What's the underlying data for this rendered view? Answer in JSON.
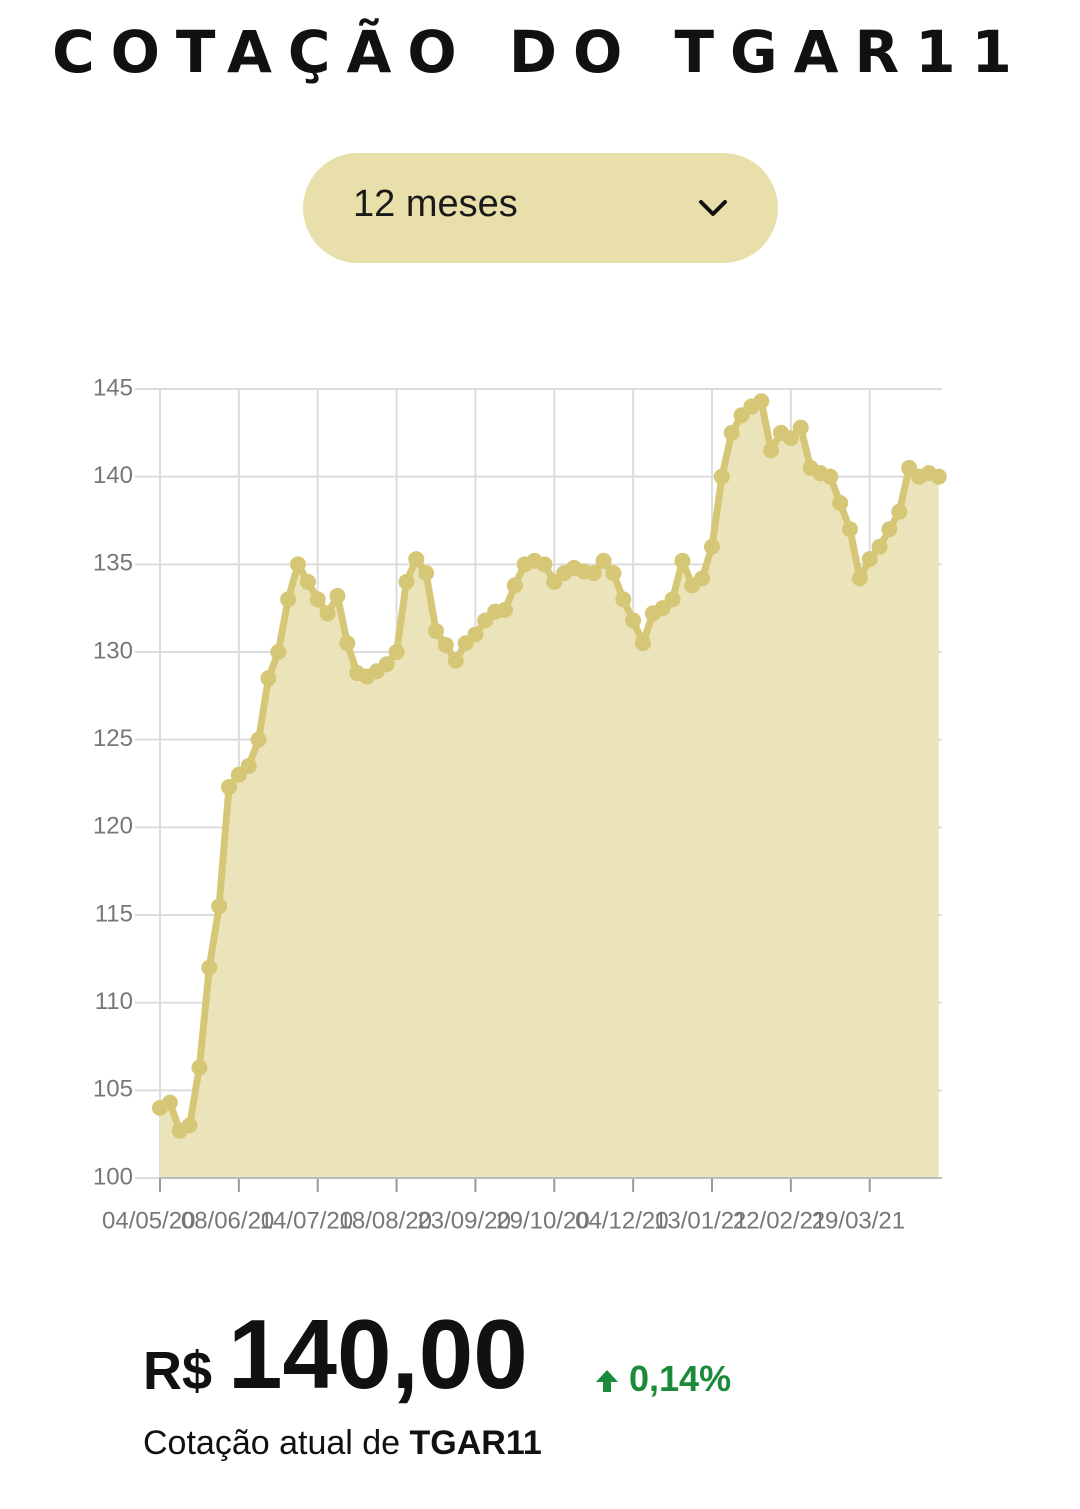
{
  "header": {
    "title": "COTAÇÃO DO TGAR11"
  },
  "period_select": {
    "label": "12 meses"
  },
  "chart_data": {
    "type": "area",
    "x": [
      0,
      3,
      6,
      9,
      12,
      15,
      18,
      21,
      24,
      27,
      30,
      33,
      36,
      39,
      42,
      45,
      48,
      51,
      54,
      57,
      60,
      63,
      66,
      69,
      72,
      75,
      78,
      81,
      84,
      87,
      90,
      93,
      96,
      99,
      102,
      105,
      108,
      111,
      114,
      117,
      120,
      123,
      126,
      129,
      132,
      135,
      138,
      141,
      144,
      147,
      150,
      153,
      156,
      159,
      162,
      165,
      168,
      171,
      174,
      177,
      180,
      183,
      186,
      189,
      192,
      195,
      198,
      201,
      204,
      207,
      210,
      213,
      216,
      219,
      222,
      225,
      228,
      231,
      234,
      237
    ],
    "series": [
      {
        "name": "TGAR11",
        "color": "#d6c777",
        "values": [
          104,
          104.3,
          102.7,
          103,
          106.3,
          112,
          115.5,
          122.3,
          123,
          123.5,
          125,
          128.5,
          130,
          133,
          135,
          134,
          133,
          132.2,
          133.2,
          130.5,
          128.8,
          128.6,
          128.9,
          129.3,
          130,
          134,
          135.3,
          134.5,
          131.2,
          130.4,
          129.5,
          130.5,
          131,
          131.8,
          132.3,
          132.4,
          133.8,
          135,
          135.2,
          135,
          134,
          134.5,
          134.8,
          134.6,
          134.5,
          135.2,
          134.5,
          133,
          131.8,
          130.5,
          132.2,
          132.5,
          133,
          135.2,
          133.8,
          134.2,
          136,
          140,
          142.5,
          143.5,
          144,
          144.3,
          141.5,
          142.5,
          142.2,
          142.8,
          140.5,
          140.2,
          140,
          138.5,
          137,
          134.2,
          135.3,
          136,
          137,
          138,
          140.5,
          140,
          140.2,
          140
        ]
      }
    ],
    "fill_color": "#ebe4ba",
    "xlim": [
      0,
      238
    ],
    "xticks": [
      {
        "value": 0,
        "label": "04/05/20"
      },
      {
        "value": 24,
        "label": "08/06/20"
      },
      {
        "value": 48,
        "label": "14/07/20"
      },
      {
        "value": 72,
        "label": "18/08/20"
      },
      {
        "value": 96,
        "label": "23/09/20"
      },
      {
        "value": 120,
        "label": "29/10/20"
      },
      {
        "value": 144,
        "label": "04/12/20"
      },
      {
        "value": 168,
        "label": "13/01/21"
      },
      {
        "value": 192,
        "label": "22/02/21"
      },
      {
        "value": 216,
        "label": "29/03/21"
      }
    ],
    "ylim": [
      100,
      145
    ],
    "yticks": [
      100,
      105,
      110,
      115,
      120,
      125,
      130,
      135,
      140,
      145
    ],
    "grid": true
  },
  "quote": {
    "currency": "R$",
    "price": "140,00",
    "change": "0,14%",
    "caption": "Cotação atual de",
    "ticker": "TGAR11"
  }
}
